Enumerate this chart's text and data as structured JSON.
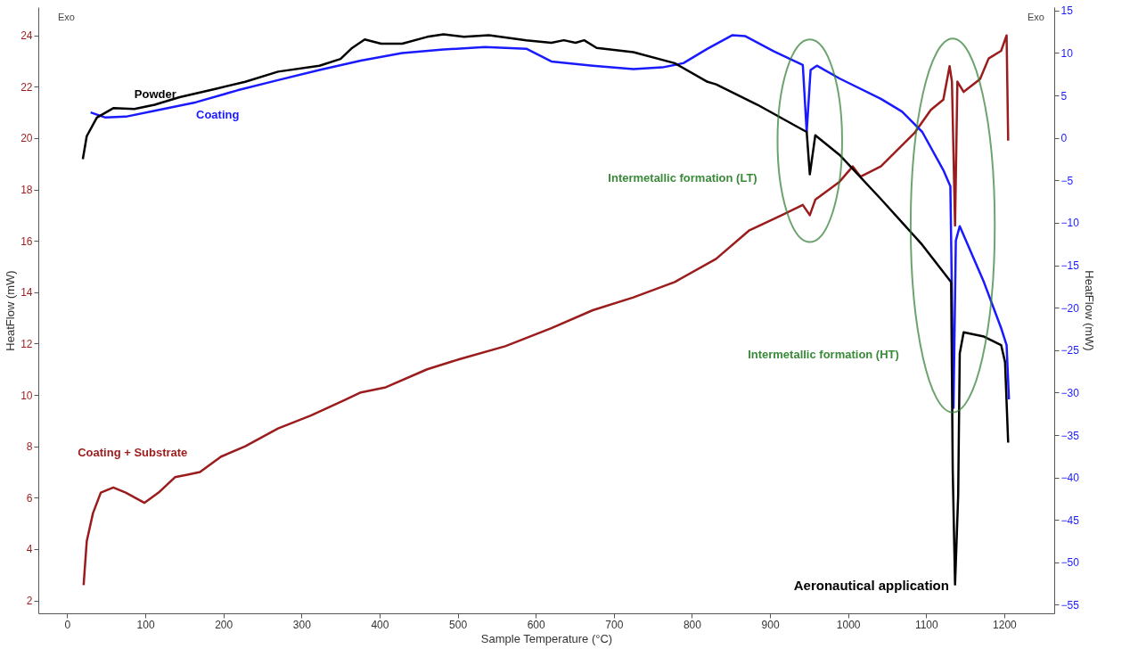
{
  "chart_data": {
    "type": "line",
    "xlabel": "Sample Temperature (°C)",
    "ylabel": "HeatFlow (mW)",
    "y2label": "HeatFlow (mW)",
    "xlim": [
      -37,
      1264
    ],
    "xticks": [
      0,
      100,
      200,
      300,
      400,
      500,
      600,
      700,
      800,
      900,
      1000,
      1100,
      1200
    ],
    "ylim": [
      1.5,
      25.1
    ],
    "yticks": [
      2,
      4,
      6,
      8,
      10,
      12,
      14,
      16,
      18,
      20,
      22,
      24
    ],
    "y2lim": [
      -56,
      15.4
    ],
    "y2ticks": [
      -55,
      -50,
      -45,
      -40,
      -35,
      -30,
      -25,
      -20,
      -15,
      -10,
      -5,
      0,
      5,
      10,
      15
    ],
    "series": [
      {
        "name": "Coating + Substrate",
        "color": "#9b1c1c",
        "x": [
          21,
          25,
          33,
          43,
          59,
          75,
          99,
          117,
          138,
          154,
          170,
          197,
          228,
          270,
          312,
          355,
          376,
          408,
          461,
          503,
          561,
          620,
          673,
          725,
          778,
          831,
          873,
          915,
          942,
          951,
          958,
          989,
          1006,
          1016,
          1042,
          1085,
          1106,
          1122,
          1130,
          1133,
          1137,
          1140,
          1148,
          1169,
          1180,
          1196,
          1203,
          1205
        ],
        "values": [
          2.6,
          4.3,
          5.4,
          6.2,
          6.4,
          6.2,
          5.8,
          6.2,
          6.8,
          6.9,
          7.0,
          7.6,
          8.0,
          8.7,
          9.2,
          9.8,
          10.1,
          10.3,
          11.0,
          11.4,
          11.9,
          12.6,
          13.3,
          13.8,
          14.4,
          15.3,
          16.4,
          17.0,
          17.4,
          17.0,
          17.6,
          18.3,
          18.9,
          18.5,
          18.9,
          20.2,
          21.1,
          21.5,
          22.8,
          22.2,
          16.6,
          22.2,
          21.8,
          22.3,
          23.1,
          23.4,
          24.0,
          19.9
        ]
      },
      {
        "name": "Coating",
        "color": "#1a1aff",
        "axis": "y2",
        "x": [
          30,
          49,
          75,
          112,
          165,
          218,
          270,
          323,
          376,
          429,
          482,
          535,
          588,
          620,
          673,
          725,
          762,
          789,
          820,
          852,
          868,
          905,
          942,
          947,
          952,
          960,
          989,
          1042,
          1069,
          1095,
          1122,
          1131,
          1135,
          1138,
          1143,
          1174,
          1196,
          1203,
          1206
        ],
        "values": [
          3.0,
          2.4,
          2.5,
          3.2,
          4.2,
          5.6,
          6.8,
          8.0,
          9.1,
          10.0,
          10.4,
          10.7,
          10.5,
          9.0,
          8.5,
          8.1,
          8.3,
          8.8,
          10.5,
          12.1,
          12.0,
          10.2,
          8.6,
          0.7,
          8.0,
          8.5,
          7.0,
          4.6,
          3.1,
          0.7,
          -3.8,
          -5.7,
          -31.8,
          -12.1,
          -10.4,
          -17.0,
          -22.4,
          -24.4,
          -30.8
        ]
      },
      {
        "name": "Powder",
        "color": "#000000",
        "axis": "y2",
        "x": [
          20,
          25,
          38,
          59,
          86,
          112,
          144,
          191,
          228,
          270,
          323,
          350,
          365,
          381,
          402,
          429,
          461,
          482,
          508,
          540,
          588,
          620,
          636,
          651,
          662,
          678,
          725,
          778,
          820,
          831,
          884,
          937,
          947,
          951,
          958,
          989,
          1042,
          1095,
          1132,
          1134,
          1137,
          1141,
          1143,
          1148,
          1174,
          1196,
          1201,
          1205
        ],
        "values": [
          -2.5,
          0.2,
          2.4,
          3.5,
          3.4,
          3.9,
          4.8,
          5.8,
          6.6,
          7.8,
          8.5,
          9.3,
          10.6,
          11.6,
          11.1,
          11.1,
          11.9,
          12.2,
          11.9,
          12.1,
          11.5,
          11.2,
          11.5,
          11.2,
          11.5,
          10.6,
          10.1,
          8.8,
          6.6,
          6.3,
          3.9,
          1.2,
          0.7,
          -4.3,
          0.3,
          -2.0,
          -7.2,
          -12.6,
          -17.0,
          -39.1,
          -52.6,
          -42.1,
          -25.4,
          -22.9,
          -23.4,
          -24.4,
          -26.4,
          -35.9
        ]
      }
    ],
    "annotations": [
      "Intermetallic formation (LT)",
      "Intermetallic formation (HT)",
      "Aeronautical application",
      "Exo",
      "Exo"
    ]
  }
}
